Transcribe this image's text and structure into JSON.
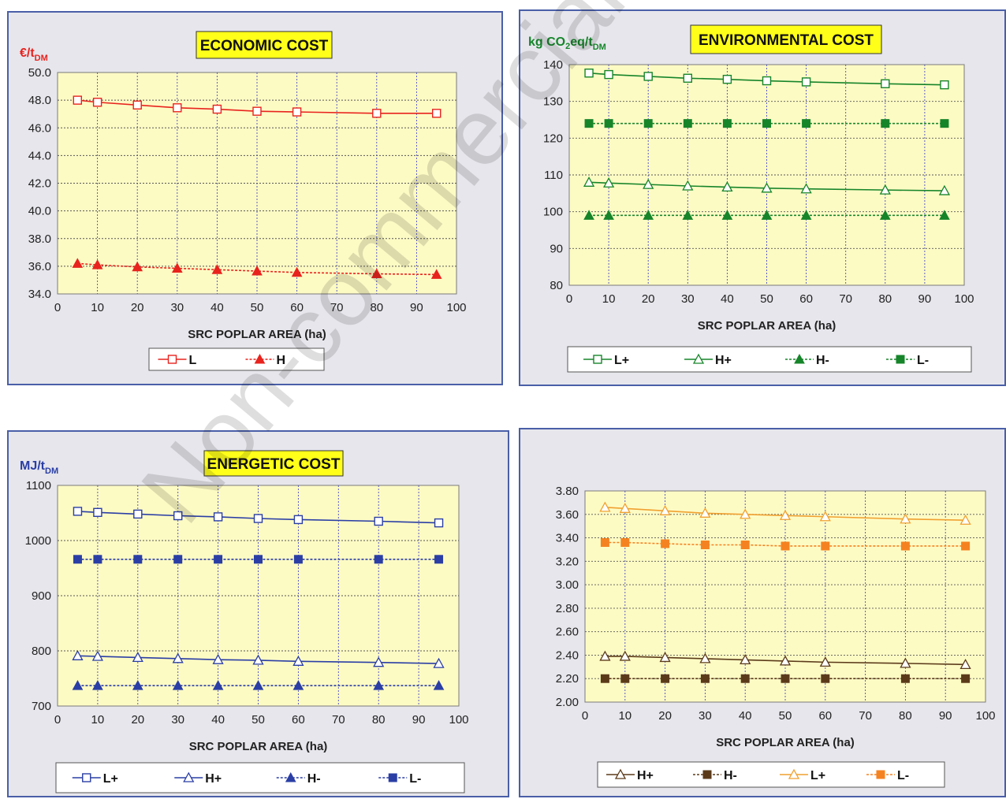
{
  "charts": [
    {
      "id": "econ",
      "title": "ECONOMIC COST",
      "ylabel_main": "€/t",
      "ylabel_sub": "DM",
      "ylabel_color": "#e8231e",
      "xlabel": "SRC POPLAR AREA (ha)",
      "ylim": [
        34,
        50
      ],
      "yticks": [
        "34.0",
        "36.0",
        "38.0",
        "40.0",
        "42.0",
        "44.0",
        "46.0",
        "48.0",
        "50.0"
      ],
      "xticks": [
        "0",
        "10",
        "20",
        "30",
        "40",
        "50",
        "60",
        "70",
        "80",
        "90",
        "100"
      ]
    },
    {
      "id": "env",
      "title": "ENVIRONMENTAL COST",
      "ylabel_main": "kg CO",
      "ylabel_sub1": "2",
      "ylabel_mid": "eq/t",
      "ylabel_sub": "DM",
      "ylabel_color": "#16852a",
      "xlabel": "SRC POPLAR AREA (ha)",
      "ylim": [
        80,
        140
      ],
      "yticks": [
        "80",
        "90",
        "100",
        "110",
        "120",
        "130",
        "140"
      ],
      "xticks": [
        "0",
        "10",
        "20",
        "30",
        "40",
        "50",
        "60",
        "70",
        "80",
        "90",
        "100"
      ]
    },
    {
      "id": "energ",
      "title": "ENERGETIC COST",
      "ylabel_main": "MJ/t",
      "ylabel_sub": "DM",
      "ylabel_color": "#2a3ea5",
      "xlabel": "SRC POPLAR AREA (ha)",
      "ylim": [
        700,
        1100
      ],
      "yticks": [
        "700",
        "800",
        "900",
        "1000",
        "1100"
      ],
      "xticks": [
        "0",
        "10",
        "20",
        "30",
        "40",
        "50",
        "60",
        "70",
        "80",
        "90",
        "100"
      ]
    },
    {
      "id": "c4",
      "title": "",
      "xlabel": "SRC POPLAR AREA (ha)",
      "ylim": [
        2.0,
        3.8
      ],
      "yticks": [
        "2.00",
        "2.20",
        "2.40",
        "2.60",
        "2.80",
        "3.00",
        "3.20",
        "3.40",
        "3.60",
        "3.80"
      ],
      "xticks": [
        "0",
        "10",
        "20",
        "30",
        "40",
        "50",
        "60",
        "70",
        "80",
        "90",
        "100"
      ]
    }
  ],
  "chart_data": [
    {
      "type": "line",
      "title": "ECONOMIC COST",
      "xlabel": "SRC POPLAR AREA (ha)",
      "ylabel": "€/tDM",
      "xlim": [
        0,
        100
      ],
      "ylim": [
        34,
        50
      ],
      "grid": true,
      "legend": "bottom",
      "x": [
        5,
        10,
        20,
        30,
        40,
        50,
        60,
        80,
        95
      ],
      "series": [
        {
          "name": "L",
          "values": [
            48.0,
            47.85,
            47.65,
            47.45,
            47.35,
            47.2,
            47.15,
            47.05,
            47.05
          ],
          "color": "#e8231e",
          "marker": "open-square",
          "dash": "solid"
        },
        {
          "name": "H",
          "values": [
            36.2,
            36.1,
            35.95,
            35.85,
            35.75,
            35.65,
            35.55,
            35.45,
            35.4
          ],
          "color": "#e8231e",
          "marker": "filled-triangle",
          "dash": "dashed"
        }
      ]
    },
    {
      "type": "line",
      "title": "ENVIRONMENTAL COST",
      "xlabel": "SRC POPLAR AREA (ha)",
      "ylabel": "kg CO2eq/tDM",
      "xlim": [
        0,
        100
      ],
      "ylim": [
        80,
        140
      ],
      "grid": true,
      "legend": "bottom",
      "x": [
        5,
        10,
        20,
        30,
        40,
        50,
        60,
        80,
        95
      ],
      "series": [
        {
          "name": "L+",
          "values": [
            137.7,
            137.3,
            136.8,
            136.3,
            136.0,
            135.6,
            135.3,
            134.8,
            134.5
          ],
          "color": "#16852a",
          "marker": "open-square",
          "dash": "solid"
        },
        {
          "name": "H+",
          "values": [
            108.0,
            107.8,
            107.4,
            107.0,
            106.7,
            106.4,
            106.2,
            105.9,
            105.7
          ],
          "color": "#16852a",
          "marker": "open-triangle",
          "dash": "solid"
        },
        {
          "name": "H-",
          "values": [
            99.0,
            99.0,
            99.0,
            99.0,
            99.0,
            99.0,
            99.0,
            99.0,
            99.0
          ],
          "color": "#16852a",
          "marker": "filled-triangle",
          "dash": "dashed"
        },
        {
          "name": "L-",
          "values": [
            124.0,
            124.0,
            124.0,
            124.0,
            124.0,
            124.0,
            124.0,
            124.0,
            124.0
          ],
          "color": "#16852a",
          "marker": "filled-square",
          "dash": "dashed"
        }
      ]
    },
    {
      "type": "line",
      "title": "ENERGETIC COST",
      "xlabel": "SRC POPLAR AREA (ha)",
      "ylabel": "MJ/tDM",
      "xlim": [
        0,
        100
      ],
      "ylim": [
        700,
        1100
      ],
      "grid": true,
      "legend": "bottom",
      "x": [
        5,
        10,
        20,
        30,
        40,
        50,
        60,
        80,
        95
      ],
      "series": [
        {
          "name": "L+",
          "values": [
            1053,
            1051,
            1048,
            1045,
            1043,
            1040,
            1038,
            1035,
            1032
          ],
          "color": "#2a3ea5",
          "marker": "open-square",
          "dash": "solid"
        },
        {
          "name": "H+",
          "values": [
            791,
            790,
            788,
            786,
            784,
            783,
            781,
            779,
            777
          ],
          "color": "#2a3ea5",
          "marker": "open-triangle",
          "dash": "solid"
        },
        {
          "name": "H-",
          "values": [
            737,
            737,
            737,
            737,
            737,
            737,
            737,
            737,
            737
          ],
          "color": "#2a3ea5",
          "marker": "filled-triangle",
          "dash": "dashed"
        },
        {
          "name": "L-",
          "values": [
            966,
            966,
            966,
            966,
            966,
            966,
            966,
            966,
            966
          ],
          "color": "#2a3ea5",
          "marker": "filled-square",
          "dash": "dashed"
        }
      ]
    },
    {
      "type": "line",
      "title": "",
      "xlabel": "SRC POPLAR AREA (ha)",
      "ylabel": "",
      "xlim": [
        0,
        100
      ],
      "ylim": [
        2.0,
        3.8
      ],
      "grid": true,
      "legend": "bottom",
      "x": [
        5,
        10,
        20,
        30,
        40,
        50,
        60,
        80,
        95
      ],
      "series": [
        {
          "name": "H+",
          "values": [
            2.39,
            2.39,
            2.38,
            2.37,
            2.36,
            2.35,
            2.34,
            2.33,
            2.32
          ],
          "color": "#5b3a1a",
          "marker": "open-triangle",
          "dash": "solid"
        },
        {
          "name": "H-",
          "values": [
            2.2,
            2.2,
            2.2,
            2.2,
            2.2,
            2.2,
            2.2,
            2.2,
            2.2
          ],
          "color": "#5b3a1a",
          "marker": "filled-square",
          "dash": "dashed"
        },
        {
          "name": "L+",
          "values": [
            3.66,
            3.65,
            3.63,
            3.61,
            3.6,
            3.59,
            3.58,
            3.56,
            3.55
          ],
          "color": "#f0a030",
          "marker": "open-triangle",
          "dash": "solid"
        },
        {
          "name": "L-",
          "values": [
            3.36,
            3.36,
            3.35,
            3.34,
            3.34,
            3.33,
            3.33,
            3.33,
            3.33
          ],
          "color": "#f58220",
          "marker": "filled-square",
          "dash": "dashed"
        }
      ]
    }
  ],
  "watermark": "Non-commercial use"
}
